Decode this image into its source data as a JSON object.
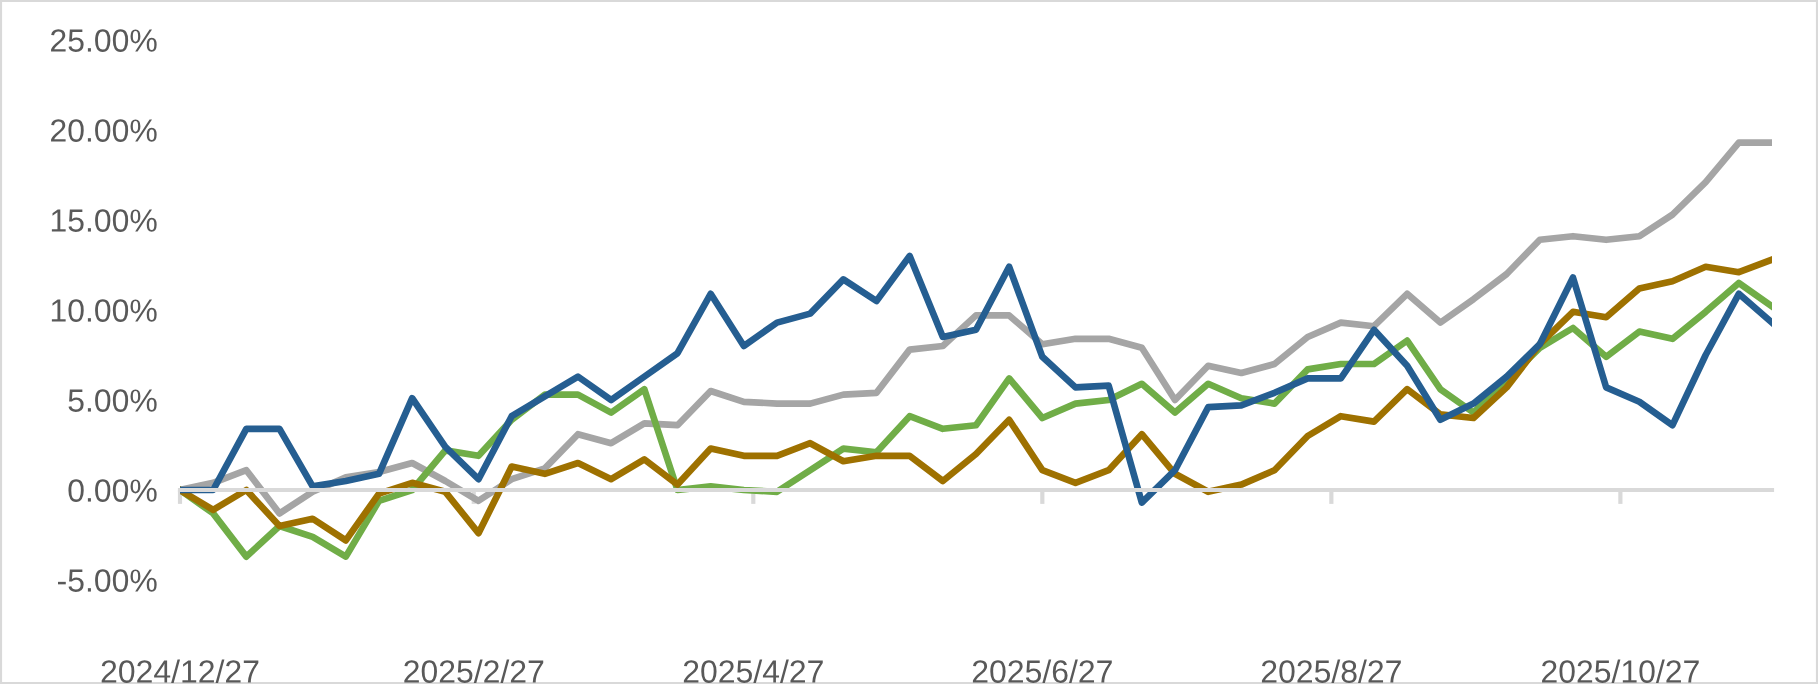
{
  "chart_data": {
    "type": "line",
    "x": [
      "2024-12-27",
      "2025-01-03",
      "2025-01-10",
      "2025-01-17",
      "2025-01-24",
      "2025-01-31",
      "2025-02-07",
      "2025-02-14",
      "2025-02-21",
      "2025-02-28",
      "2025-03-07",
      "2025-03-14",
      "2025-03-21",
      "2025-03-28",
      "2025-04-04",
      "2025-04-11",
      "2025-04-18",
      "2025-04-25",
      "2025-05-02",
      "2025-05-09",
      "2025-05-16",
      "2025-05-23",
      "2025-05-30",
      "2025-06-06",
      "2025-06-13",
      "2025-06-20",
      "2025-06-27",
      "2025-07-04",
      "2025-07-11",
      "2025-07-18",
      "2025-07-25",
      "2025-08-01",
      "2025-08-08",
      "2025-08-15",
      "2025-08-22",
      "2025-08-29",
      "2025-09-05",
      "2025-09-12",
      "2025-09-19",
      "2025-09-26",
      "2025-10-03",
      "2025-10-10",
      "2025-10-17",
      "2025-10-24",
      "2025-10-31",
      "2025-11-07",
      "2025-11-14",
      "2025-11-21",
      "2025-11-28"
    ],
    "series": [
      {
        "color": "#a5a5a5",
        "values": [
          0,
          0.4,
          1.1,
          -1.3,
          -0.1,
          0.7,
          1.0,
          1.5,
          0.5,
          -0.6,
          0.6,
          1.2,
          3.1,
          2.6,
          3.7,
          3.6,
          5.5,
          4.9,
          4.8,
          4.8,
          5.3,
          5.4,
          7.8,
          8.0,
          9.7,
          9.7,
          8.1,
          8.4,
          8.4,
          7.9,
          5.0,
          6.9,
          6.5,
          7.0,
          8.5,
          9.3,
          9.1,
          10.9,
          9.3,
          10.6,
          12.0,
          13.9,
          14.1,
          13.9,
          14.1,
          15.3,
          17.1,
          19.3,
          19.3
        ]
      },
      {
        "color": "#70ad47",
        "values": [
          0,
          -1.3,
          -3.7,
          -2.0,
          -2.6,
          -3.7,
          -0.6,
          0,
          2.2,
          1.9,
          3.9,
          5.3,
          5.3,
          4.3,
          5.6,
          0,
          0.2,
          0,
          -0.1,
          1.1,
          2.3,
          2.1,
          4.1,
          3.4,
          3.6,
          6.2,
          4.0,
          4.8,
          5.0,
          5.9,
          4.3,
          5.9,
          5.1,
          4.8,
          6.7,
          7.0,
          7.0,
          8.3,
          5.6,
          4.3,
          6.1,
          7.9,
          9.0,
          7.4,
          8.8,
          8.4,
          9.9,
          11.5,
          10.2
        ]
      },
      {
        "color": "#9e7100",
        "values": [
          0,
          -1.1,
          0,
          -2.0,
          -1.6,
          -2.8,
          -0.2,
          0.4,
          -0.1,
          -2.4,
          1.3,
          0.9,
          1.5,
          0.6,
          1.7,
          0.3,
          2.3,
          1.9,
          1.9,
          2.6,
          1.6,
          1.9,
          1.9,
          0.5,
          2.0,
          3.9,
          1.1,
          0.4,
          1.1,
          3.1,
          0.9,
          -0.1,
          0.3,
          1.1,
          3.0,
          4.1,
          3.8,
          5.6,
          4.2,
          4.0,
          5.7,
          8.1,
          9.9,
          9.6,
          11.2,
          11.6,
          12.4,
          12.1,
          12.8
        ]
      },
      {
        "color": "#255e91",
        "values": [
          0,
          0,
          3.4,
          3.4,
          0.2,
          0.5,
          0.9,
          5.1,
          2.4,
          0.6,
          4.1,
          5.2,
          6.3,
          5.0,
          6.3,
          7.6,
          10.9,
          8.0,
          9.3,
          9.8,
          11.7,
          10.5,
          13.0,
          8.5,
          8.9,
          12.4,
          7.4,
          5.7,
          5.8,
          -0.7,
          1.1,
          4.6,
          4.7,
          5.4,
          6.2,
          6.2,
          8.9,
          6.9,
          3.9,
          4.8,
          6.3,
          8.1,
          11.8,
          5.7,
          4.9,
          3.6,
          7.5,
          10.9,
          9.3
        ]
      }
    ],
    "xlim": [
      "2024-12-27",
      "2025-11-28"
    ],
    "xticks": [
      {
        "value": "2024-12-27",
        "label": "2024/12/27"
      },
      {
        "value": "2025-02-27",
        "label": "2025/2/27"
      },
      {
        "value": "2025-04-27",
        "label": "2025/4/27"
      },
      {
        "value": "2025-06-27",
        "label": "2025/6/27"
      },
      {
        "value": "2025-08-27",
        "label": "2025/8/27"
      },
      {
        "value": "2025-10-27",
        "label": "2025/10/27"
      }
    ],
    "ylim": [
      -5,
      25
    ],
    "yticks": [
      {
        "value": -5,
        "label": "-5.00%"
      },
      {
        "value": 0,
        "label": "0.00%"
      },
      {
        "value": 5,
        "label": "5.00%"
      },
      {
        "value": 10,
        "label": "10.00%"
      },
      {
        "value": 15,
        "label": "15.00%"
      },
      {
        "value": 20,
        "label": "20.00%"
      },
      {
        "value": 25,
        "label": "25.00%"
      }
    ],
    "marker": "none",
    "line_style": "solid"
  }
}
